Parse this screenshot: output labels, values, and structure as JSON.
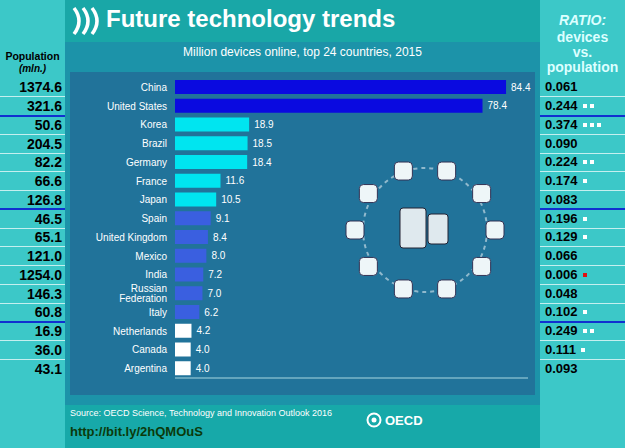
{
  "chart_data": {
    "type": "bar",
    "orientation": "horizontal",
    "title": "Future technology trends",
    "subtitle": "Million devices online, top 24 countries, 2015",
    "categories": [
      "China",
      "United States",
      "Korea",
      "Brazil",
      "Germany",
      "France",
      "Japan",
      "Spain",
      "United Kingdom",
      "Mexico",
      "India",
      "Russian Federation",
      "Italy",
      "Netherlands",
      "Canada",
      "Argentina"
    ],
    "values": [
      84.4,
      78.4,
      18.9,
      18.5,
      18.4,
      11.6,
      10.5,
      9.1,
      8.4,
      8.0,
      7.2,
      7.0,
      6.2,
      4.2,
      4.0,
      4.0
    ],
    "value_labels": [
      "84.4",
      "78.4",
      "18.9",
      "18.5",
      "18.4",
      "11.6",
      "10.5",
      "9.1",
      "8.4",
      "8.0",
      "7.2",
      "7.0",
      "6.2",
      "4.2",
      "4.0",
      "4.0"
    ],
    "colors": [
      "#0a0ae0",
      "#0a0ae0",
      "#00e5f0",
      "#00e5f0",
      "#00e5f0",
      "#00e5f0",
      "#00e5f0",
      "#3a5fe0",
      "#3a5fe0",
      "#3a5fe0",
      "#3a5fe0",
      "#3a5fe0",
      "#3a5fe0",
      "#ffffff",
      "#ffffff",
      "#ffffff"
    ],
    "xlim": [
      0,
      90
    ],
    "data_labels": true,
    "tick_labels": "y",
    "grid": false
  },
  "population": {
    "title": "Population",
    "unit": "(mln.)",
    "values": [
      "1374.6",
      "321.6",
      "50.6",
      "204.5",
      "82.2",
      "66.6",
      "126.8",
      "46.5",
      "65.1",
      "121.0",
      "1254.0",
      "146.3",
      "60.8",
      "16.9",
      "36.0",
      "43.1"
    ]
  },
  "ratio": {
    "title": "RATIO:",
    "subtitle": "devices vs. population",
    "values": [
      "0.061",
      "0.244",
      "0.374",
      "0.090",
      "0.224",
      "0.174",
      "0.083",
      "0.196",
      "0.129",
      "0.066",
      "0.006",
      "0.048",
      "0.102",
      "0.249",
      "0.111",
      "0.093"
    ]
  },
  "source": "Source: OECD Science, Technology and Innovation Outlook 2016",
  "url": "http://bit.ly/2hQMOuS",
  "logo": "OECD"
}
